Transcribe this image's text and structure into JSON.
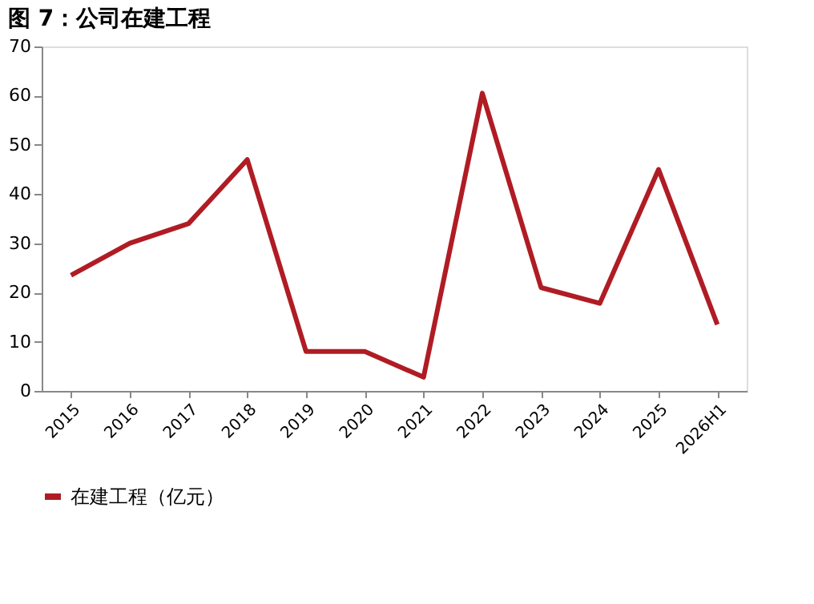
{
  "chart_data": {
    "type": "line",
    "title": "图 7：公司在建工程",
    "categories": [
      "2015",
      "2016",
      "2017",
      "2018",
      "2019",
      "2020",
      "2021",
      "2022",
      "2023",
      "2024",
      "2025",
      "2026H1"
    ],
    "series": [
      {
        "name": "在建工程（亿元）",
        "color": "#b01c24",
        "values": [
          23.5,
          30,
          34,
          47,
          8,
          8,
          2.8,
          60.5,
          21,
          17.8,
          45,
          13.5
        ]
      }
    ],
    "ylim": [
      0,
      70
    ],
    "yticks": [
      0,
      10,
      20,
      30,
      40,
      50,
      60,
      70
    ],
    "grid": false,
    "legend": "bottom",
    "marker": "none",
    "line_style": "solid"
  }
}
